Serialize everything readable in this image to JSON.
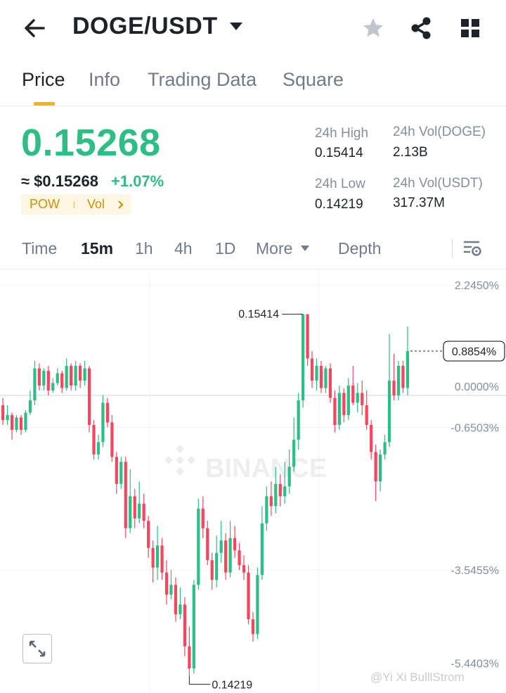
{
  "header": {
    "pair": "DOGE/USDT",
    "icons": [
      "back-arrow-icon",
      "caret-down-icon",
      "star-icon",
      "share-icon",
      "grid-icon"
    ]
  },
  "tabs": [
    {
      "label": "Price",
      "active": true
    },
    {
      "label": "Info",
      "active": false
    },
    {
      "label": "Trading Data",
      "active": false
    },
    {
      "label": "Square",
      "active": false
    }
  ],
  "price": {
    "last": "0.15268",
    "usd": "≈ $0.15268",
    "change": "+1.07%",
    "tag1": "POW",
    "tag2": "Vol",
    "high_label": "24h High",
    "high_value": "0.15414",
    "low_label": "24h Low",
    "low_value": "0.14219",
    "vol_doge_label": "24h Vol(DOGE)",
    "vol_doge_value": "2.13B",
    "vol_usdt_label": "24h Vol(USDT)",
    "vol_usdt_value": "317.37M"
  },
  "timeframes": [
    {
      "label": "Time",
      "active": false
    },
    {
      "label": "15m",
      "active": true
    },
    {
      "label": "1h",
      "active": false
    },
    {
      "label": "4h",
      "active": false
    },
    {
      "label": "1D",
      "active": false
    },
    {
      "label": "More",
      "active": false
    },
    {
      "label": "Depth",
      "active": false
    }
  ],
  "colors": {
    "up": "#2ebd85",
    "down": "#f6465d",
    "accent": "#f0b90b"
  },
  "chart_data": {
    "type": "candlestick",
    "y_axis_labels": [
      "2.2450%",
      "0.0000%",
      "-0.6503%",
      "-3.5455%",
      "-5.4403%"
    ],
    "current_label": "0.8854%",
    "high_marker": "0.15414",
    "low_marker": "0.14219",
    "ylim_percent": [
      -6.3,
      3.0
    ],
    "candles": [
      [
        -0.2,
        -0.5,
        -0.05,
        -0.6
      ],
      [
        -0.5,
        -0.4,
        -0.2,
        -0.6
      ],
      [
        -0.4,
        -0.7,
        -0.35,
        -0.9
      ],
      [
        -0.7,
        -0.45,
        -0.4,
        -0.75
      ],
      [
        -0.45,
        -0.7,
        -0.4,
        -0.8
      ],
      [
        -0.7,
        -0.35,
        -0.3,
        -0.75
      ],
      [
        -0.35,
        -0.1,
        0.1,
        -0.4
      ],
      [
        -0.1,
        0.55,
        0.7,
        -0.2
      ],
      [
        0.55,
        0.2,
        0.65,
        0.1
      ],
      [
        0.2,
        0.5,
        0.55,
        0.1
      ],
      [
        0.5,
        0.1,
        0.6,
        0.0
      ],
      [
        0.1,
        0.25,
        0.35,
        0.05
      ],
      [
        0.25,
        0.45,
        0.55,
        0.2
      ],
      [
        0.45,
        0.15,
        0.5,
        0.05
      ],
      [
        0.15,
        0.6,
        0.75,
        0.1
      ],
      [
        0.6,
        0.2,
        0.65,
        0.1
      ],
      [
        0.2,
        0.6,
        0.7,
        0.1
      ],
      [
        0.6,
        0.3,
        0.65,
        0.15
      ],
      [
        0.3,
        0.55,
        0.7,
        0.2
      ],
      [
        0.55,
        -0.6,
        0.6,
        -0.75
      ],
      [
        -0.6,
        -1.2,
        -0.5,
        -1.3
      ],
      [
        -1.2,
        -0.95,
        -0.8,
        -1.3
      ],
      [
        -0.95,
        -0.15,
        0.0,
        -1.05
      ],
      [
        -0.15,
        -0.55,
        -0.05,
        -0.65
      ],
      [
        -0.55,
        -1.25,
        -0.4,
        -1.35
      ],
      [
        -1.25,
        -1.8,
        -1.15,
        -2.0
      ],
      [
        -1.8,
        -1.35,
        -1.25,
        -1.9
      ],
      [
        -1.35,
        -2.7,
        -1.25,
        -2.9
      ],
      [
        -2.7,
        -2.05,
        -1.5,
        -2.8
      ],
      [
        -2.05,
        -2.5,
        -1.9,
        -2.7
      ],
      [
        -2.5,
        -2.2,
        -1.75,
        -2.6
      ],
      [
        -2.2,
        -2.55,
        -2.0,
        -2.7
      ],
      [
        -2.55,
        -3.1,
        -2.45,
        -3.3
      ],
      [
        -3.1,
        -3.5,
        -2.95,
        -3.8
      ],
      [
        -3.5,
        -3.05,
        -2.65,
        -3.75
      ],
      [
        -3.05,
        -3.6,
        -2.9,
        -3.75
      ],
      [
        -3.6,
        -4.05,
        -3.35,
        -4.25
      ],
      [
        -4.05,
        -3.85,
        -3.55,
        -4.15
      ],
      [
        -3.85,
        -4.45,
        -3.7,
        -4.6
      ],
      [
        -4.45,
        -4.25,
        -3.9,
        -4.55
      ],
      [
        -4.25,
        -5.1,
        -4.1,
        -5.3
      ],
      [
        -5.1,
        -5.55,
        -4.7,
        -5.7
      ],
      [
        -5.55,
        -3.85,
        -3.75,
        -5.65
      ],
      [
        -3.85,
        -2.3,
        -2.1,
        -3.95
      ],
      [
        -2.3,
        -2.7,
        -2.05,
        -2.9
      ],
      [
        -2.7,
        -3.35,
        -2.55,
        -3.45
      ],
      [
        -3.35,
        -3.75,
        -3.2,
        -3.95
      ],
      [
        -3.75,
        -3.2,
        -2.85,
        -3.9
      ],
      [
        -3.2,
        -2.95,
        -2.55,
        -3.4
      ],
      [
        -2.95,
        -3.6,
        -2.8,
        -3.75
      ],
      [
        -3.6,
        -2.9,
        -2.55,
        -3.7
      ],
      [
        -2.9,
        -3.15,
        -2.65,
        -3.3
      ],
      [
        -3.15,
        -3.45,
        -3.0,
        -3.55
      ],
      [
        -3.45,
        -3.6,
        -3.25,
        -3.75
      ],
      [
        -3.6,
        -4.55,
        -3.45,
        -4.65
      ],
      [
        -4.55,
        -4.85,
        -4.4,
        -5.0
      ],
      [
        -4.85,
        -3.65,
        -3.5,
        -4.95
      ],
      [
        -3.65,
        -2.6,
        -2.25,
        -3.75
      ],
      [
        -2.6,
        -2.05,
        -1.85,
        -2.75
      ],
      [
        -2.05,
        -2.25,
        -1.75,
        -2.45
      ],
      [
        -2.25,
        -1.8,
        -1.45,
        -2.4
      ],
      [
        -1.8,
        -2.05,
        -1.6,
        -2.25
      ],
      [
        -2.05,
        -1.85,
        -1.35,
        -2.2
      ],
      [
        -1.85,
        -1.45,
        -1.1,
        -2.0
      ],
      [
        -1.45,
        -0.9,
        -0.45,
        -1.55
      ],
      [
        -0.9,
        -0.1,
        0.05,
        -1.1
      ],
      [
        -0.1,
        1.65,
        1.65,
        -0.25
      ],
      [
        1.65,
        0.75,
        1.6,
        0.6
      ],
      [
        0.75,
        0.3,
        0.9,
        0.15
      ],
      [
        0.3,
        0.6,
        0.75,
        0.1
      ],
      [
        0.6,
        0.15,
        0.7,
        0.05
      ],
      [
        0.15,
        0.55,
        0.6,
        0.05
      ],
      [
        0.55,
        -0.05,
        0.65,
        -0.15
      ],
      [
        -0.05,
        -0.6,
        0.1,
        -0.75
      ],
      [
        -0.6,
        0.05,
        0.2,
        -0.7
      ],
      [
        0.05,
        -0.4,
        0.15,
        -0.55
      ],
      [
        -0.4,
        0.2,
        0.35,
        -0.5
      ],
      [
        0.2,
        -0.15,
        0.6,
        -0.2
      ],
      [
        -0.15,
        0.05,
        0.25,
        -0.35
      ],
      [
        0.05,
        -0.2,
        0.3,
        -0.4
      ],
      [
        -0.2,
        -0.6,
        0.1,
        -0.7
      ],
      [
        -0.6,
        -1.15,
        -0.5,
        -1.3
      ],
      [
        -1.15,
        -1.75,
        -1.0,
        -2.15
      ],
      [
        -1.75,
        -1.2,
        -1.1,
        -1.95
      ],
      [
        -1.2,
        -0.95,
        -0.8,
        -1.3
      ],
      [
        -0.95,
        0.3,
        1.25,
        -1.05
      ],
      [
        0.3,
        0.0,
        0.85,
        -0.1
      ],
      [
        0.0,
        0.6,
        0.7,
        -0.1
      ],
      [
        0.6,
        0.15,
        0.7,
        0.05
      ],
      [
        0.15,
        0.9,
        1.4,
        0.0
      ]
    ]
  },
  "watermark": {
    "brand": "BINANCE",
    "footer": "@Yi Xi BulllStrom"
  }
}
